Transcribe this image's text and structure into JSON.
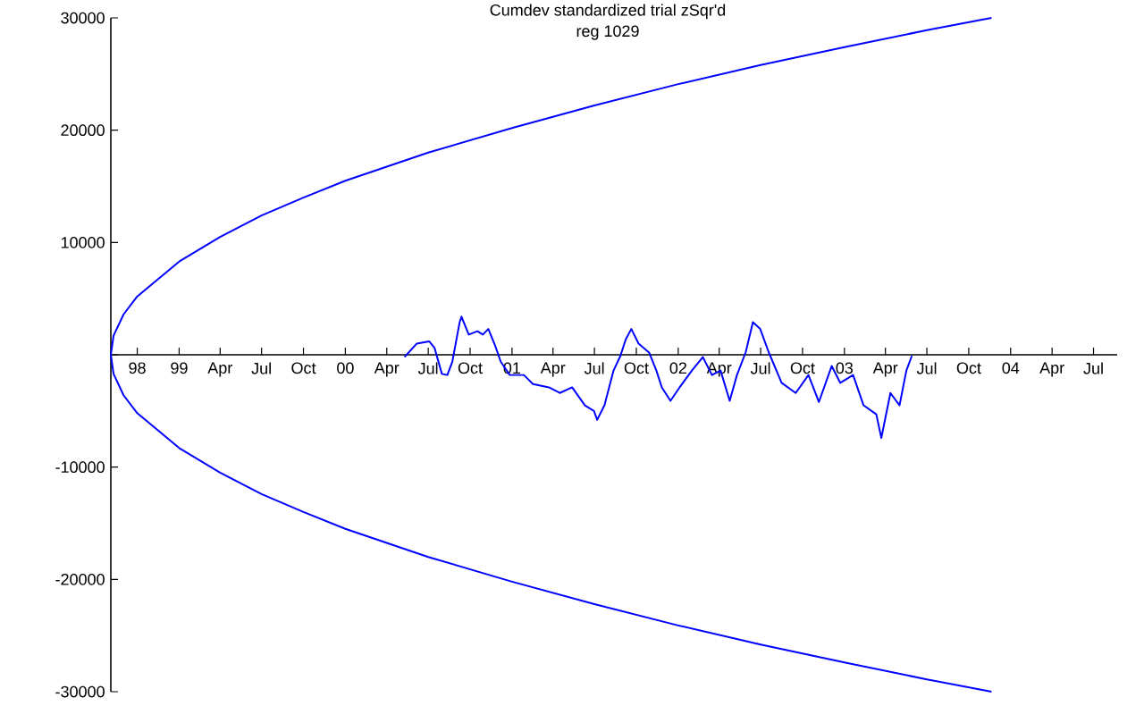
{
  "chart_data": {
    "type": "line",
    "title": "Cumdev standardized trial zSqr'd",
    "subtitle": "reg 1029",
    "series": [
      {
        "color": "#0000ff",
        "x": [
          "2003-11-20",
          "2003-07-01",
          "2003-01-01",
          "2002-07-01",
          "2002-01-01",
          "2001-07-01",
          "2001-01-01",
          "2000-07-01",
          "2000-01-01",
          "1999-10-01",
          "1999-07-01",
          "1999-04-01",
          "1999-01-01",
          "1998-10-01",
          "1998-09-01",
          "1998-08-10",
          "1998-08-04",
          "1998-08-10",
          "1998-09-01",
          "1998-10-01",
          "1999-01-01",
          "1999-04-01",
          "1999-07-01",
          "1999-10-01",
          "2000-01-01",
          "2000-07-01",
          "2001-01-01",
          "2001-07-01",
          "2002-01-01",
          "2002-07-01",
          "2003-01-01",
          "2003-07-01",
          "2003-11-20"
        ],
        "values": [
          30000,
          28900,
          27400,
          25800,
          24100,
          22200,
          20200,
          18000,
          15500,
          14000,
          12400,
          10500,
          8300,
          5200,
          3600,
          1700,
          0,
          -1700,
          -3600,
          -5200,
          -8300,
          -10500,
          -12400,
          -14000,
          -15500,
          -18000,
          -20200,
          -22200,
          -24100,
          -25800,
          -27400,
          -28900,
          -30000
        ]
      },
      {
        "color": "#0000ff",
        "x": [
          "2000-05-10",
          "2000-06-06",
          "2000-07-03",
          "2000-07-15",
          "2000-07-31",
          "2000-08-12",
          "2000-08-23",
          "2000-09-08",
          "2000-09-12",
          "2000-09-28",
          "2000-10-17",
          "2000-10-29",
          "2000-11-10",
          "2000-11-26",
          "2000-12-07",
          "2000-12-27",
          "2001-01-27",
          "2001-02-16",
          "2001-03-23",
          "2001-04-16",
          "2001-05-13",
          "2001-06-10",
          "2001-06-30",
          "2001-07-07",
          "2001-07-23",
          "2001-08-12",
          "2001-08-27",
          "2001-09-08",
          "2001-09-20",
          "2001-10-06",
          "2001-10-29",
          "2001-11-14",
          "2001-11-26",
          "2001-12-15",
          "2002-01-04",
          "2002-01-31",
          "2002-02-24",
          "2002-03-16",
          "2002-04-04",
          "2002-04-24",
          "2002-05-10",
          "2002-05-29",
          "2002-06-14",
          "2002-06-30",
          "2002-07-19",
          "2002-08-16",
          "2002-09-16",
          "2002-10-14",
          "2002-11-06",
          "2002-12-04",
          "2002-12-23",
          "2003-01-20",
          "2003-02-12",
          "2003-03-12",
          "2003-03-23",
          "2003-04-12",
          "2003-05-02",
          "2003-05-17",
          "2003-05-29"
        ],
        "values": [
          -200,
          1000,
          1200,
          600,
          -1700,
          -1800,
          -600,
          2900,
          3400,
          1800,
          2100,
          1800,
          2300,
          700,
          -600,
          -1800,
          -1800,
          -2600,
          -2900,
          -3400,
          -2900,
          -4500,
          -5000,
          -5800,
          -4500,
          -1400,
          -100,
          1400,
          2300,
          1000,
          200,
          -1400,
          -2900,
          -4100,
          -2900,
          -1400,
          -200,
          -1800,
          -1400,
          -4100,
          -1800,
          200,
          2900,
          2300,
          200,
          -2500,
          -3400,
          -1800,
          -4200,
          -1000,
          -2500,
          -1800,
          -4500,
          -5300,
          -7400,
          -3400,
          -4500,
          -1400,
          -100
        ]
      }
    ],
    "xlim": [
      "1998-08-04",
      "2004-08-22"
    ],
    "xticks": [
      {
        "value": "1998-10-01",
        "label": "98"
      },
      {
        "value": "1999-01-01",
        "label": "99"
      },
      {
        "value": "1999-04-01",
        "label": "Apr"
      },
      {
        "value": "1999-07-01",
        "label": "Jul"
      },
      {
        "value": "1999-10-01",
        "label": "Oct"
      },
      {
        "value": "2000-01-01",
        "label": "00"
      },
      {
        "value": "2000-04-01",
        "label": "Apr"
      },
      {
        "value": "2000-07-01",
        "label": "Jul"
      },
      {
        "value": "2000-10-01",
        "label": "Oct"
      },
      {
        "value": "2001-01-01",
        "label": "01"
      },
      {
        "value": "2001-04-01",
        "label": "Apr"
      },
      {
        "value": "2001-07-01",
        "label": "Jul"
      },
      {
        "value": "2001-10-01",
        "label": "Oct"
      },
      {
        "value": "2002-01-01",
        "label": "02"
      },
      {
        "value": "2002-04-01",
        "label": "Apr"
      },
      {
        "value": "2002-07-01",
        "label": "Jul"
      },
      {
        "value": "2002-10-01",
        "label": "Oct"
      },
      {
        "value": "2003-01-01",
        "label": "03"
      },
      {
        "value": "2003-04-01",
        "label": "Apr"
      },
      {
        "value": "2003-07-01",
        "label": "Jul"
      },
      {
        "value": "2003-10-01",
        "label": "Oct"
      },
      {
        "value": "2004-01-01",
        "label": "04"
      },
      {
        "value": "2004-04-01",
        "label": "Apr"
      },
      {
        "value": "2004-07-01",
        "label": "Jul"
      }
    ],
    "ylim": [
      -30000,
      30000
    ],
    "yticks": [
      -30000,
      -20000,
      -10000,
      {
        "value": 0,
        "label": null
      },
      10000,
      20000,
      30000
    ],
    "marker": "none",
    "line_style": "solid",
    "grid": false
  }
}
